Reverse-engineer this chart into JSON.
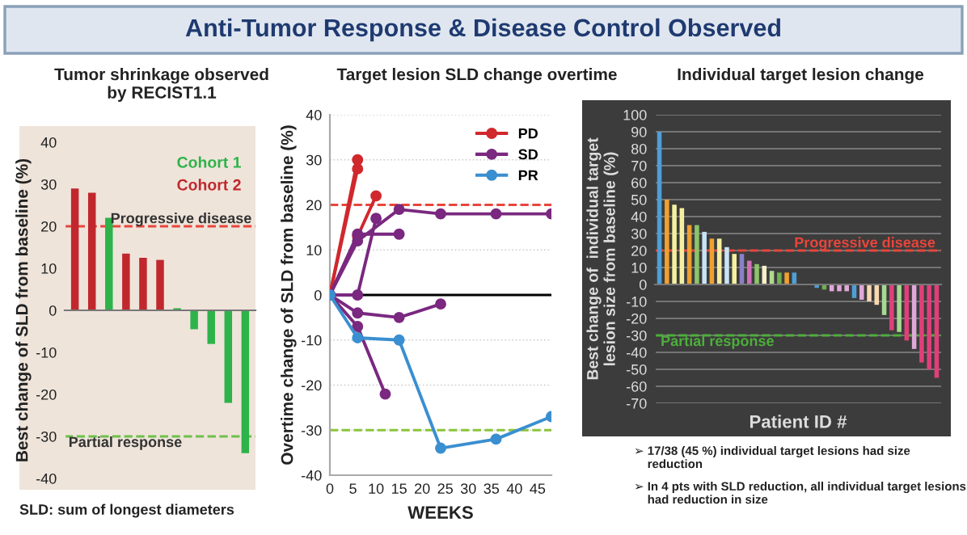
{
  "chart_data": [
    {
      "type": "bar",
      "title": "Tumor shrinkage observed\nby RECIST1.1",
      "ylabel": "Best change of SLD from baseline (%)",
      "annotations": [
        "Anti-Tumor Response & Disease Control Observed",
        "SLD: sum of longest diameters"
      ],
      "categories": [
        null,
        null,
        null,
        null,
        null,
        null,
        null,
        null,
        null,
        null,
        null
      ],
      "series": [
        {
          "name": "Cohort 1",
          "color": "#2db34a",
          "values": [
            null,
            null,
            22,
            null,
            null,
            null,
            0.5,
            -4.5,
            -8,
            -22,
            -34
          ]
        },
        {
          "name": "Cohort 2",
          "color": "#c0282d",
          "values": [
            29,
            28,
            null,
            13.5,
            12.5,
            12,
            null,
            null,
            null,
            null,
            null
          ]
        }
      ],
      "ylim": [
        -40,
        40
      ],
      "yticks": [
        -40,
        -30,
        -20,
        -10,
        0,
        10,
        20,
        30,
        40
      ],
      "grid": false,
      "legend": "top right",
      "ref_lines": [
        {
          "axis": "y",
          "value": 20,
          "label": "Progressive disease",
          "color": "#e8453c",
          "line_style": "dashed"
        },
        {
          "axis": "y",
          "value": -30,
          "label": "Partial response",
          "color": "#6cc04a",
          "line_style": "dashed"
        }
      ]
    },
    {
      "type": "line",
      "title": "Target lesion SLD change overtime",
      "xlabel": "WEEKS",
      "ylabel": "Overtime change of SLD from baseline (%)",
      "series": [
        {
          "name": "PD",
          "color": "#d0282d",
          "x": [
            0,
            6
          ],
          "values": [
            0,
            30
          ]
        },
        {
          "color": "#d0282d",
          "x": [
            0,
            6
          ],
          "values": [
            0,
            28
          ]
        },
        {
          "color": "#d0282d",
          "x": [
            0,
            6,
            10
          ],
          "values": [
            0,
            13,
            22
          ]
        },
        {
          "name": "SD",
          "color": "#7a2880",
          "x": [
            0,
            6,
            15
          ],
          "values": [
            0,
            13.5,
            13.5
          ]
        },
        {
          "color": "#7a2880",
          "x": [
            0,
            6,
            10
          ],
          "values": [
            0,
            0,
            17
          ]
        },
        {
          "color": "#7a2880",
          "x": [
            0,
            6,
            15,
            24,
            36,
            48
          ],
          "values": [
            0,
            12,
            19,
            18,
            18,
            18
          ]
        },
        {
          "color": "#7a2880",
          "x": [
            0,
            6,
            15,
            24
          ],
          "values": [
            0,
            -4,
            -5,
            -2
          ]
        },
        {
          "color": "#7a2880",
          "x": [
            0,
            6,
            12
          ],
          "values": [
            0,
            -7,
            -22
          ]
        },
        {
          "name": "PR",
          "color": "#3a8fd0",
          "x": [
            0,
            6,
            15,
            24,
            36,
            48
          ],
          "values": [
            0,
            -9.5,
            -10,
            -34,
            -32,
            -27
          ]
        }
      ],
      "xlim": [
        0,
        48
      ],
      "xticks": [
        0,
        5,
        10,
        15,
        20,
        25,
        30,
        35,
        40,
        45
      ],
      "ylim": [
        -40,
        40
      ],
      "yticks": [
        -40,
        -30,
        -20,
        -10,
        0,
        10,
        20,
        30,
        40
      ],
      "grid": "y",
      "legend": "top right",
      "marker": "circle",
      "line_style": "solid",
      "ref_lines": [
        {
          "axis": "y",
          "value": 20,
          "color": "#e8453c",
          "line_style": "dashed"
        },
        {
          "axis": "y",
          "value": -30,
          "color": "#8cc43a",
          "line_style": "dashed"
        },
        {
          "axis": "y",
          "value": 0,
          "color": "#000000",
          "line_style": "solid"
        }
      ]
    },
    {
      "type": "bar",
      "title": "Individual target lesion change",
      "xlabel": "Patient ID #",
      "ylabel": "Best change of  individual target\nlesion size from baseline (%)",
      "annotations": [
        "➢ 17/38 (45 %) individual target lesions had size\n    reduction",
        "➢ In 4 pts with SLD reduction, all individual target lesions\n    had reduction in size"
      ],
      "categories": [
        null,
        null,
        null,
        null,
        null,
        null,
        null,
        null,
        null,
        null,
        null,
        null,
        null,
        null,
        null,
        null,
        null,
        null,
        null,
        null,
        null,
        null,
        null,
        null,
        null,
        null,
        null,
        null,
        null,
        null,
        null,
        null,
        null,
        null,
        null,
        null,
        null,
        null
      ],
      "values": [
        90,
        50,
        47,
        45,
        35,
        35,
        31,
        27,
        27,
        22,
        18,
        18,
        14,
        12,
        11,
        8,
        7,
        7,
        7,
        0,
        0,
        -2,
        -3,
        -4,
        -4,
        -4,
        -8,
        -9,
        -10,
        -12,
        -18,
        -27,
        -28,
        -33,
        -38,
        -46,
        -50,
        -55
      ],
      "colors": [
        "#4e9fd6",
        "#f0a030",
        "#f5f0a0",
        "#f5f0a0",
        "#f0a030",
        "#8cc46a",
        "#c8e4f4",
        "#f0a030",
        "#f5f0a0",
        "#c8e4f4",
        "#f5f0a0",
        "#8a80c8",
        "#d070b8",
        "#8cc46a",
        "#f5f0c8",
        "#b0d890",
        "#70b050",
        "#f0a030",
        "#4e9fd6",
        "#cccccc",
        "#cccccc",
        "#4e9fd6",
        "#70b050",
        "#e0a8d8",
        "#e0a8d8",
        "#e0a8d8",
        "#4e9fd6",
        "#e0a8d8",
        "#f8d8b0",
        "#f8d8b0",
        "#a8d890",
        "#e0407a",
        "#a8d890",
        "#e0407a",
        "#e0a8d8",
        "#e0407a",
        "#e0407a",
        "#e0407a"
      ],
      "ylim": [
        -70,
        100
      ],
      "yticks": [
        100,
        90,
        80,
        70,
        60,
        50,
        40,
        30,
        20,
        10,
        0,
        -10,
        -20,
        -30,
        -40,
        -50,
        -60,
        -70
      ],
      "grid": "y",
      "ref_lines": [
        {
          "axis": "y",
          "value": 20,
          "label": "Progressive disease",
          "color": "#e8453c",
          "line_style": "dashed"
        },
        {
          "axis": "y",
          "value": -30,
          "label": "Partial response",
          "color": "#4caf3a",
          "line_style": "dashed"
        }
      ]
    }
  ]
}
